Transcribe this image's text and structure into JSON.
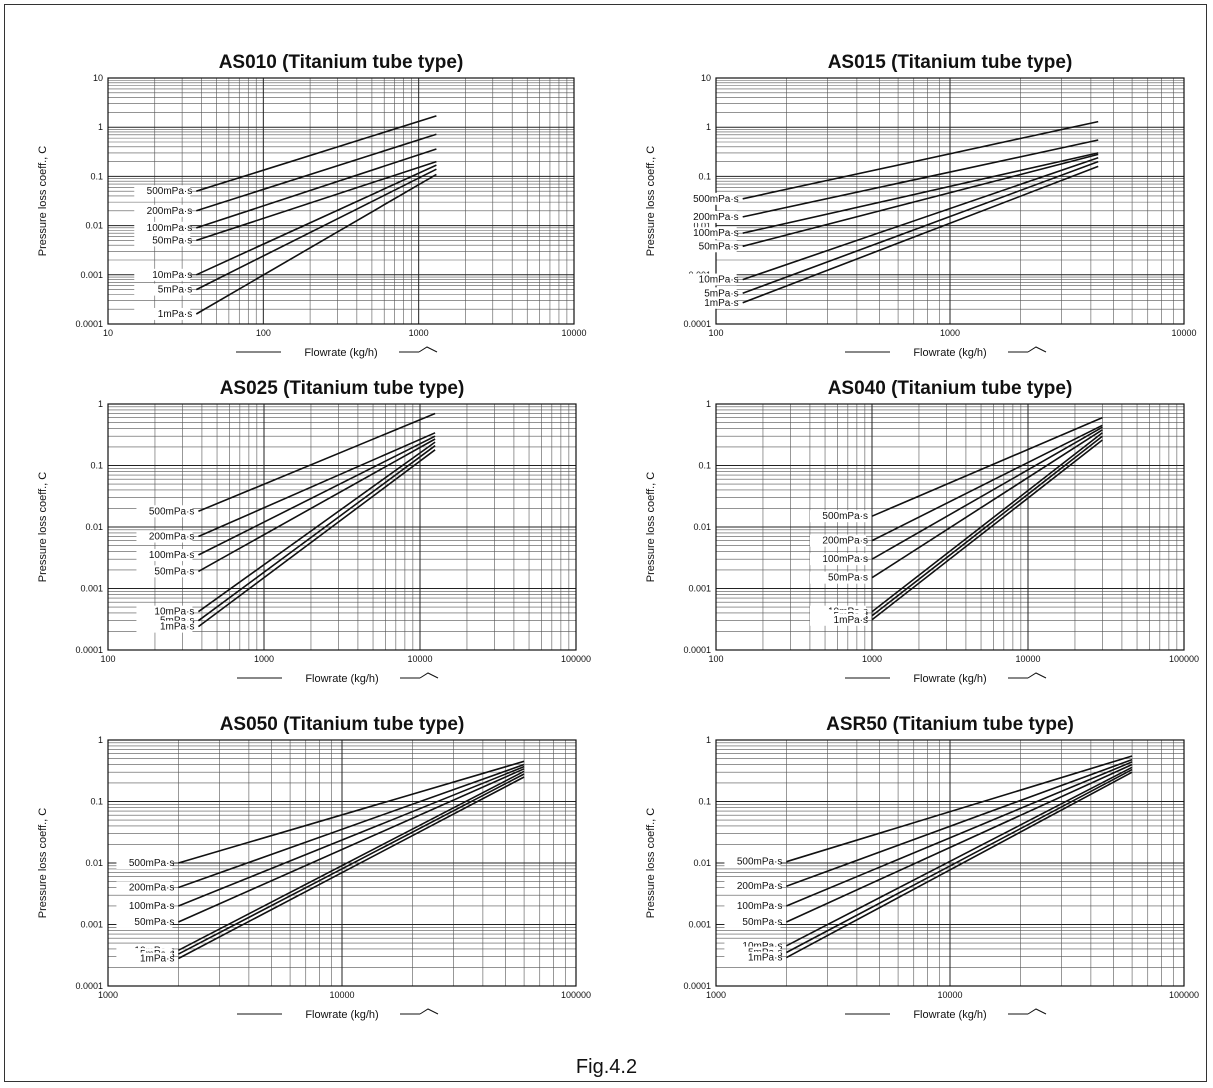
{
  "figure_caption": "Fig.4.2",
  "chart_data": [
    {
      "type": "line",
      "title": "AS010 (Titanium tube type)",
      "xlabel": "Flowrate (kg/h)",
      "ylabel": "Pressure loss coeff., C",
      "xscale": "log",
      "yscale": "log",
      "xlim": [
        10,
        10000
      ],
      "ylim": [
        0.0001,
        10
      ],
      "xticks": [
        "10",
        "100",
        "1000",
        "10000"
      ],
      "yticks": [
        "0.0001",
        "0.001",
        "0.01",
        "0.1",
        "1",
        "10"
      ],
      "grid": true,
      "series": [
        {
          "name": "500mPa·s",
          "x": [
            37,
            1300
          ],
          "y": [
            0.05,
            1.7
          ]
        },
        {
          "name": "200mPa·s",
          "x": [
            37,
            1300
          ],
          "y": [
            0.02,
            0.72
          ]
        },
        {
          "name": "100mPa·s",
          "x": [
            37,
            1300
          ],
          "y": [
            0.009,
            0.36
          ]
        },
        {
          "name": "50mPa·s",
          "x": [
            37,
            1300
          ],
          "y": [
            0.005,
            0.2
          ]
        },
        {
          "name": "10mPa·s",
          "x": [
            37,
            1300
          ],
          "y": [
            0.001,
            0.17
          ]
        },
        {
          "name": "5mPa·s",
          "x": [
            37,
            1300
          ],
          "y": [
            0.0005,
            0.14
          ]
        },
        {
          "name": "1mPa·s",
          "x": [
            37,
            1300
          ],
          "y": [
            0.00016,
            0.11
          ]
        }
      ]
    },
    {
      "type": "line",
      "title": "AS015 (Titanium tube type)",
      "xlabel": "Flowrate (kg/h)",
      "ylabel": "Pressure loss coeff., C",
      "xscale": "log",
      "yscale": "log",
      "xlim": [
        100,
        10000
      ],
      "ylim": [
        0.0001,
        10
      ],
      "xticks": [
        "100",
        "1000",
        "10000"
      ],
      "yticks": [
        "0.0001",
        "0.001",
        "0.01",
        "0.1",
        "1",
        "10"
      ],
      "grid": true,
      "series": [
        {
          "name": "500mPa·s",
          "x": [
            130,
            4300
          ],
          "y": [
            0.035,
            1.3
          ]
        },
        {
          "name": "200mPa·s",
          "x": [
            130,
            4300
          ],
          "y": [
            0.015,
            0.55
          ]
        },
        {
          "name": "100mPa·s",
          "x": [
            130,
            4300
          ],
          "y": [
            0.007,
            0.3
          ]
        },
        {
          "name": "50mPa·s",
          "x": [
            130,
            4300
          ],
          "y": [
            0.0038,
            0.28
          ]
        },
        {
          "name": "10mPa·s",
          "x": [
            130,
            4300
          ],
          "y": [
            0.0008,
            0.24
          ]
        },
        {
          "name": "5mPa·s",
          "x": [
            130,
            4300
          ],
          "y": [
            0.00042,
            0.2
          ]
        },
        {
          "name": "1mPa·s",
          "x": [
            130,
            4300
          ],
          "y": [
            0.00027,
            0.16
          ]
        }
      ]
    },
    {
      "type": "line",
      "title": "AS025 (Titanium tube type)",
      "xlabel": "Flowrate (kg/h)",
      "ylabel": "Pressure loss coeff., C",
      "xscale": "log",
      "yscale": "log",
      "xlim": [
        100,
        100000
      ],
      "ylim": [
        0.0001,
        1
      ],
      "xticks": [
        "100",
        "1000",
        "10000",
        "100000"
      ],
      "yticks": [
        "0.0001",
        "0.001",
        "0.01",
        "0.1",
        "1"
      ],
      "grid": true,
      "series": [
        {
          "name": "500mPa·s",
          "x": [
            380,
            12500
          ],
          "y": [
            0.018,
            0.7
          ]
        },
        {
          "name": "200mPa·s",
          "x": [
            380,
            12500
          ],
          "y": [
            0.007,
            0.34
          ]
        },
        {
          "name": "100mPa·s",
          "x": [
            380,
            12500
          ],
          "y": [
            0.0035,
            0.3
          ]
        },
        {
          "name": "50mPa·s",
          "x": [
            380,
            12500
          ],
          "y": [
            0.0019,
            0.27
          ]
        },
        {
          "name": "10mPa·s",
          "x": [
            380,
            12500
          ],
          "y": [
            0.00042,
            0.24
          ]
        },
        {
          "name": "5mPa·s",
          "x": [
            380,
            12500
          ],
          "y": [
            0.0003,
            0.21
          ]
        },
        {
          "name": "1mPa·s",
          "x": [
            380,
            12500
          ],
          "y": [
            0.00024,
            0.18
          ]
        }
      ]
    },
    {
      "type": "line",
      "title": "AS040 (Titanium tube type)",
      "xlabel": "Flowrate (kg/h)",
      "ylabel": "Pressure loss coeff., C",
      "xscale": "log",
      "yscale": "log",
      "xlim": [
        100,
        100000
      ],
      "ylim": [
        0.0001,
        1
      ],
      "xticks": [
        "100",
        "1000",
        "10000",
        "100000"
      ],
      "yticks": [
        "0.0001",
        "0.001",
        "0.01",
        "0.1",
        "1"
      ],
      "grid": true,
      "series": [
        {
          "name": "500mPa·s",
          "x": [
            1000,
            30000
          ],
          "y": [
            0.015,
            0.6
          ]
        },
        {
          "name": "200mPa·s",
          "x": [
            1000,
            30000
          ],
          "y": [
            0.006,
            0.45
          ]
        },
        {
          "name": "100mPa·s",
          "x": [
            1000,
            30000
          ],
          "y": [
            0.003,
            0.42
          ]
        },
        {
          "name": "50mPa·s",
          "x": [
            1000,
            30000
          ],
          "y": [
            0.0015,
            0.38
          ]
        },
        {
          "name": "10mPa·s",
          "x": [
            1000,
            30000
          ],
          "y": [
            0.00042,
            0.34
          ]
        },
        {
          "name": "5mPa·s",
          "x": [
            1000,
            30000
          ],
          "y": [
            0.00036,
            0.3
          ]
        },
        {
          "name": "1mPa·s",
          "x": [
            1000,
            30000
          ],
          "y": [
            0.00031,
            0.26
          ]
        }
      ]
    },
    {
      "type": "line",
      "title": "AS050 (Titanium tube type)",
      "xlabel": "Flowrate (kg/h)",
      "ylabel": "Pressure loss coeff., C",
      "xscale": "log",
      "yscale": "log",
      "xlim": [
        1000,
        100000
      ],
      "ylim": [
        0.0001,
        1
      ],
      "xticks": [
        "1000",
        "10000",
        "100000"
      ],
      "yticks": [
        "0.0001",
        "0.001",
        "0.01",
        "0.1",
        "1"
      ],
      "grid": true,
      "series": [
        {
          "name": "500mPa·s",
          "x": [
            2000,
            60000
          ],
          "y": [
            0.01,
            0.45
          ]
        },
        {
          "name": "200mPa·s",
          "x": [
            2000,
            60000
          ],
          "y": [
            0.004,
            0.4
          ]
        },
        {
          "name": "100mPa·s",
          "x": [
            2000,
            60000
          ],
          "y": [
            0.002,
            0.37
          ]
        },
        {
          "name": "50mPa·s",
          "x": [
            2000,
            60000
          ],
          "y": [
            0.0011,
            0.34
          ]
        },
        {
          "name": "10mPa·s",
          "x": [
            2000,
            60000
          ],
          "y": [
            0.00038,
            0.31
          ]
        },
        {
          "name": "5mPa·s",
          "x": [
            2000,
            60000
          ],
          "y": [
            0.00033,
            0.28
          ]
        },
        {
          "name": "1mPa·s",
          "x": [
            2000,
            60000
          ],
          "y": [
            0.00028,
            0.25
          ]
        }
      ]
    },
    {
      "type": "line",
      "title": "ASR50 (Titanium tube type)",
      "xlabel": "Flowrate (kg/h)",
      "ylabel": "Pressure loss coeff., C",
      "xscale": "log",
      "yscale": "log",
      "xlim": [
        1000,
        100000
      ],
      "ylim": [
        0.0001,
        1
      ],
      "xticks": [
        "1000",
        "10000",
        "100000"
      ],
      "yticks": [
        "0.0001",
        "0.001",
        "0.01",
        "0.1",
        "1"
      ],
      "grid": true,
      "series": [
        {
          "name": "500mPa·s",
          "x": [
            2000,
            60000
          ],
          "y": [
            0.0105,
            0.55
          ]
        },
        {
          "name": "200mPa·s",
          "x": [
            2000,
            60000
          ],
          "y": [
            0.0042,
            0.48
          ]
        },
        {
          "name": "100mPa·s",
          "x": [
            2000,
            60000
          ],
          "y": [
            0.002,
            0.44
          ]
        },
        {
          "name": "50mPa·s",
          "x": [
            2000,
            60000
          ],
          "y": [
            0.0011,
            0.4
          ]
        },
        {
          "name": "10mPa·s",
          "x": [
            2000,
            60000
          ],
          "y": [
            0.00045,
            0.36
          ]
        },
        {
          "name": "5mPa·s",
          "x": [
            2000,
            60000
          ],
          "y": [
            0.00035,
            0.33
          ]
        },
        {
          "name": "1mPa·s",
          "x": [
            2000,
            60000
          ],
          "y": [
            0.00029,
            0.3
          ]
        }
      ]
    }
  ]
}
